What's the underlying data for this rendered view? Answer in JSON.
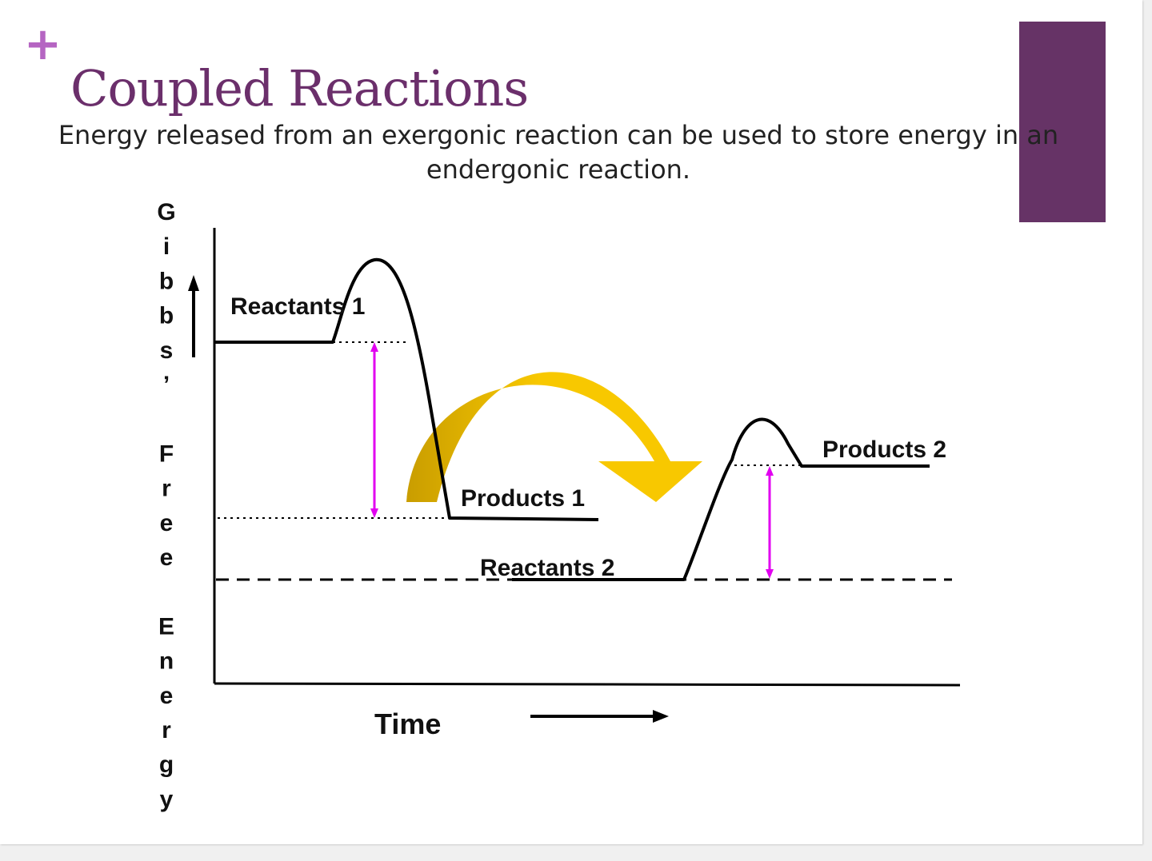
{
  "slide": {
    "title": "Coupled Reactions",
    "subtitle": "Energy released from an exergonic reaction can be used to store energy in an endergonic reaction.",
    "plus_glyph": "+",
    "theme_colors": {
      "accent_purple": "#663366",
      "title_purple": "#6b2f6b",
      "plus_purple": "#b565c2",
      "energy_arrow_magenta": "#e100f0",
      "coupling_arrow_gold": "#f8c800",
      "coupling_arrow_dark_gold": "#c99d00"
    }
  },
  "diagram": {
    "y_axis_label": "Gibbs’ Free Energy",
    "x_axis_label": "Time",
    "labels": {
      "reactants_1": "Reactants 1",
      "products_1": "Products 1",
      "reactants_2": "Reactants 2",
      "products_2": "Products 2"
    },
    "icons": {
      "y_direction": "arrow-up-icon",
      "x_direction": "arrow-right-icon",
      "coupling": "curved-arrow-icon"
    }
  }
}
